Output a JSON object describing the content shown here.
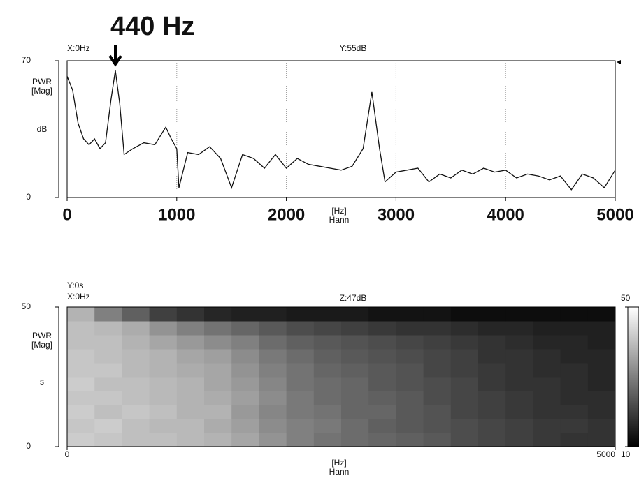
{
  "chart_data": [
    {
      "type": "line",
      "annotation": "440 Hz",
      "cursor_x": "X:0Hz",
      "cursor_y": "Y:55dB",
      "ylabel": "PWR",
      "ylabel_unit": "[Mag]",
      "yunit": "dB",
      "xlabel": "[Hz]",
      "window": "Hann",
      "color": "#111111",
      "grid": true,
      "xlim": [
        0,
        5000
      ],
      "xticks": [
        0,
        1000,
        2000,
        3000,
        4000,
        5000
      ],
      "ylim": [
        0,
        70
      ],
      "yticks": [
        0,
        70
      ],
      "x": [
        0,
        50,
        100,
        150,
        200,
        250,
        300,
        350,
        400,
        440,
        480,
        520,
        600,
        700,
        800,
        900,
        950,
        1000,
        1020,
        1100,
        1200,
        1300,
        1400,
        1500,
        1600,
        1700,
        1800,
        1900,
        2000,
        2100,
        2200,
        2300,
        2400,
        2500,
        2600,
        2700,
        2780,
        2850,
        2900,
        3000,
        3100,
        3200,
        3300,
        3400,
        3500,
        3600,
        3700,
        3800,
        3900,
        4000,
        4100,
        4200,
        4300,
        4400,
        4500,
        4600,
        4700,
        4800,
        4900,
        5000
      ],
      "values": [
        62,
        55,
        38,
        30,
        27,
        30,
        25,
        28,
        50,
        65,
        48,
        22,
        25,
        28,
        27,
        36,
        30,
        25,
        5,
        23,
        22,
        26,
        20,
        5,
        22,
        20,
        15,
        22,
        15,
        20,
        17,
        16,
        15,
        14,
        16,
        25,
        54,
        25,
        8,
        13,
        14,
        15,
        8,
        12,
        10,
        14,
        12,
        15,
        13,
        14,
        10,
        12,
        11,
        9,
        11,
        4,
        12,
        10,
        5,
        14
      ]
    },
    {
      "type": "heatmap",
      "cursor_y": "Y:0s",
      "cursor_x": "X:0Hz",
      "cursor_z": "Z:47dB",
      "ylabel": "PWR",
      "ylabel_unit": "[Mag]",
      "yunit": "s",
      "xlabel": "[Hz]",
      "window": "Hann",
      "xlim": [
        0,
        5000
      ],
      "xticks": [
        0,
        5000
      ],
      "ylim": [
        0,
        50
      ],
      "yticks": [
        0,
        50
      ],
      "zlim": [
        10,
        50
      ],
      "zticks": [
        10,
        50
      ],
      "values": [
        [
          42,
          41,
          40,
          40,
          39,
          38,
          36,
          33,
          30,
          28,
          27,
          26,
          25,
          24,
          22,
          21,
          20,
          19,
          18,
          18
        ],
        [
          41,
          42,
          40,
          39,
          39,
          37,
          35,
          32,
          30,
          29,
          27,
          25,
          24,
          23,
          22,
          21,
          20,
          19,
          19,
          18
        ],
        [
          42,
          40,
          41,
          40,
          38,
          38,
          34,
          31,
          29,
          28,
          26,
          26,
          24,
          23,
          21,
          20,
          19,
          18,
          18,
          17
        ],
        [
          41,
          41,
          40,
          39,
          38,
          37,
          35,
          32,
          29,
          27,
          26,
          25,
          24,
          22,
          21,
          20,
          19,
          18,
          17,
          17
        ],
        [
          42,
          40,
          40,
          39,
          38,
          36,
          34,
          31,
          28,
          27,
          26,
          24,
          23,
          22,
          21,
          19,
          18,
          18,
          17,
          16
        ],
        [
          41,
          41,
          39,
          38,
          37,
          36,
          33,
          30,
          28,
          26,
          25,
          24,
          23,
          21,
          20,
          19,
          18,
          17,
          17,
          16
        ],
        [
          41,
          40,
          39,
          38,
          36,
          35,
          32,
          29,
          27,
          25,
          24,
          23,
          22,
          21,
          20,
          18,
          18,
          17,
          16,
          16
        ],
        [
          40,
          40,
          38,
          36,
          34,
          32,
          30,
          27,
          25,
          24,
          23,
          22,
          21,
          20,
          19,
          18,
          17,
          16,
          16,
          15
        ],
        [
          40,
          39,
          37,
          33,
          30,
          28,
          26,
          24,
          22,
          21,
          20,
          19,
          18,
          18,
          17,
          16,
          16,
          15,
          15,
          15
        ],
        [
          38,
          30,
          25,
          20,
          18,
          16,
          15,
          15,
          14,
          14,
          14,
          13,
          13,
          13,
          12,
          12,
          12,
          12,
          12,
          12
        ]
      ]
    }
  ]
}
